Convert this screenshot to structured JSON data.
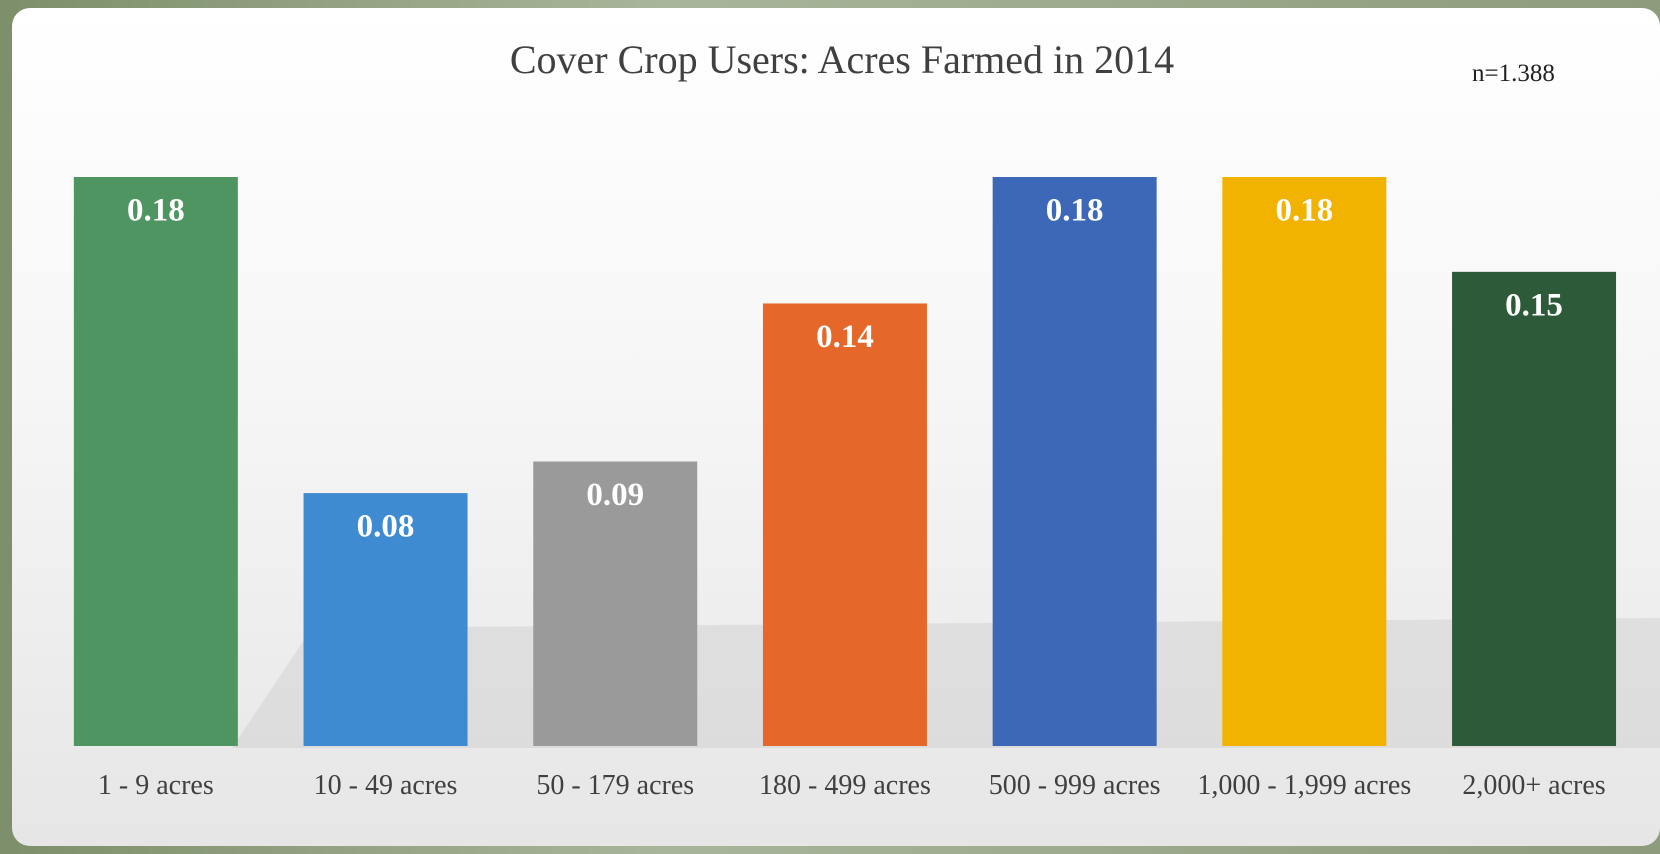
{
  "chart_data": {
    "type": "bar",
    "title": "Cover Crop Users:  Acres Farmed in 2014",
    "annotation": "n=1.388",
    "categories": [
      "1 - 9 acres",
      "10 - 49 acres",
      "50 - 179 acres",
      "180 - 499 acres",
      "500 - 999 acres",
      "1,000 - 1,999 acres",
      "2,000+ acres"
    ],
    "values": [
      0.18,
      0.08,
      0.09,
      0.14,
      0.18,
      0.18,
      0.15
    ],
    "colors": [
      "#4f9562",
      "#3f8bd2",
      "#9a9a9a",
      "#e5682a",
      "#3d68b8",
      "#f1b300",
      "#2d5a38"
    ],
    "ylim": [
      0,
      0.18
    ]
  }
}
